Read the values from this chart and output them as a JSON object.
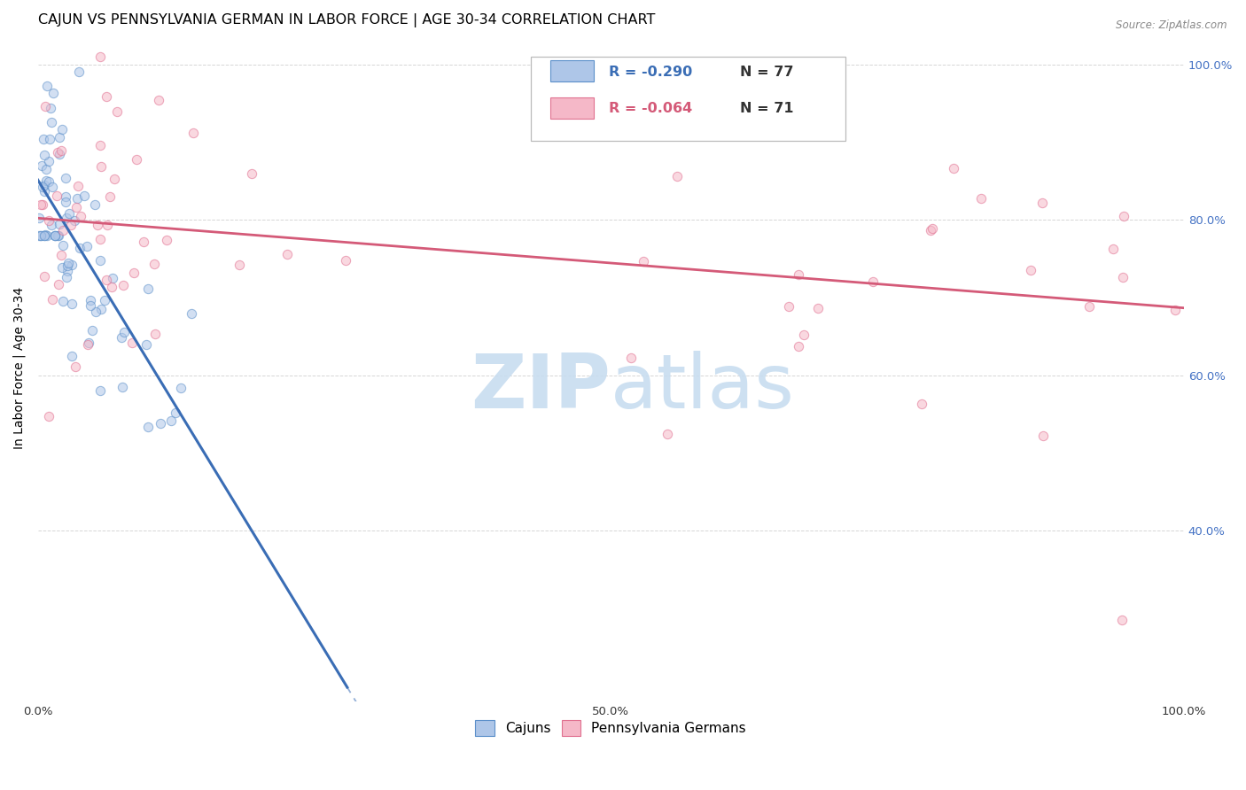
{
  "title": "CAJUN VS PENNSYLVANIA GERMAN IN LABOR FORCE | AGE 30-34 CORRELATION CHART",
  "source": "Source: ZipAtlas.com",
  "ylabel": "In Labor Force | Age 30-34",
  "cajun_R": -0.29,
  "cajun_N": 77,
  "penn_R": -0.064,
  "penn_N": 71,
  "cajun_color": "#aec6e8",
  "cajun_edge_color": "#5b8fc9",
  "cajun_line_color": "#3a6db5",
  "penn_color": "#f5b8c8",
  "penn_edge_color": "#e07090",
  "penn_line_color": "#d45a78",
  "watermark_color": "#c8ddf0",
  "grid_color": "#cccccc",
  "background_color": "#ffffff",
  "tick_color_right": "#4472c4",
  "xlim": [
    0.0,
    1.0
  ],
  "ylim": [
    0.18,
    1.04
  ],
  "title_fontsize": 11.5,
  "axis_fontsize": 10,
  "tick_fontsize": 9.5,
  "marker_size": 55,
  "marker_alpha": 0.55,
  "marker_lw": 0.8
}
